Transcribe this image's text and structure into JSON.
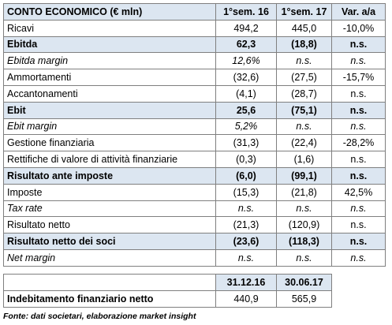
{
  "table": {
    "header": [
      "CONTO ECONOMICO (€ mln)",
      "1°sem. 16",
      "1°sem. 17",
      "Var. a/a"
    ],
    "rows": [
      [
        "Ricavi",
        "494,2",
        "445,0",
        "-10,0%"
      ],
      [
        "Ebitda",
        "62,3",
        "(18,8)",
        "n.s."
      ],
      [
        "Ebitda margin",
        "12,6%",
        "n.s.",
        "n.s."
      ],
      [
        "Ammortamenti",
        "(32,6)",
        "(27,5)",
        "-15,7%"
      ],
      [
        "Accantonamenti",
        "(4,1)",
        "(28,7)",
        "n.s."
      ],
      [
        "Ebit",
        "25,6",
        "(75,1)",
        "n.s."
      ],
      [
        "Ebit margin",
        "5,2%",
        "n.s.",
        "n.s."
      ],
      [
        "Gestione finanziaria",
        "(31,3)",
        "(22,4)",
        "-28,2%"
      ],
      [
        "Rettifiche di valore di attività finanziarie",
        "(0,3)",
        "(1,6)",
        "n.s."
      ],
      [
        "Risultato ante imposte",
        "(6,0)",
        "(99,1)",
        "n.s."
      ],
      [
        "Imposte",
        "(15,3)",
        "(21,8)",
        "42,5%"
      ],
      [
        "Tax rate",
        "n.s.",
        "n.s.",
        "n.s."
      ],
      [
        "Risultato netto",
        "(21,3)",
        "(120,9)",
        "n.s."
      ],
      [
        "Risultato netto dei soci",
        "(23,6)",
        "(118,3)",
        "n.s."
      ],
      [
        "Net margin",
        "n.s.",
        "n.s.",
        "n.s."
      ]
    ]
  },
  "debt_table": {
    "header": [
      "31.12.16",
      "30.06.17"
    ],
    "row": [
      "Indebitamento finanziario netto",
      "440,9",
      "565,9"
    ]
  },
  "source": "Fonte: dati societari, elaborazione market insight"
}
